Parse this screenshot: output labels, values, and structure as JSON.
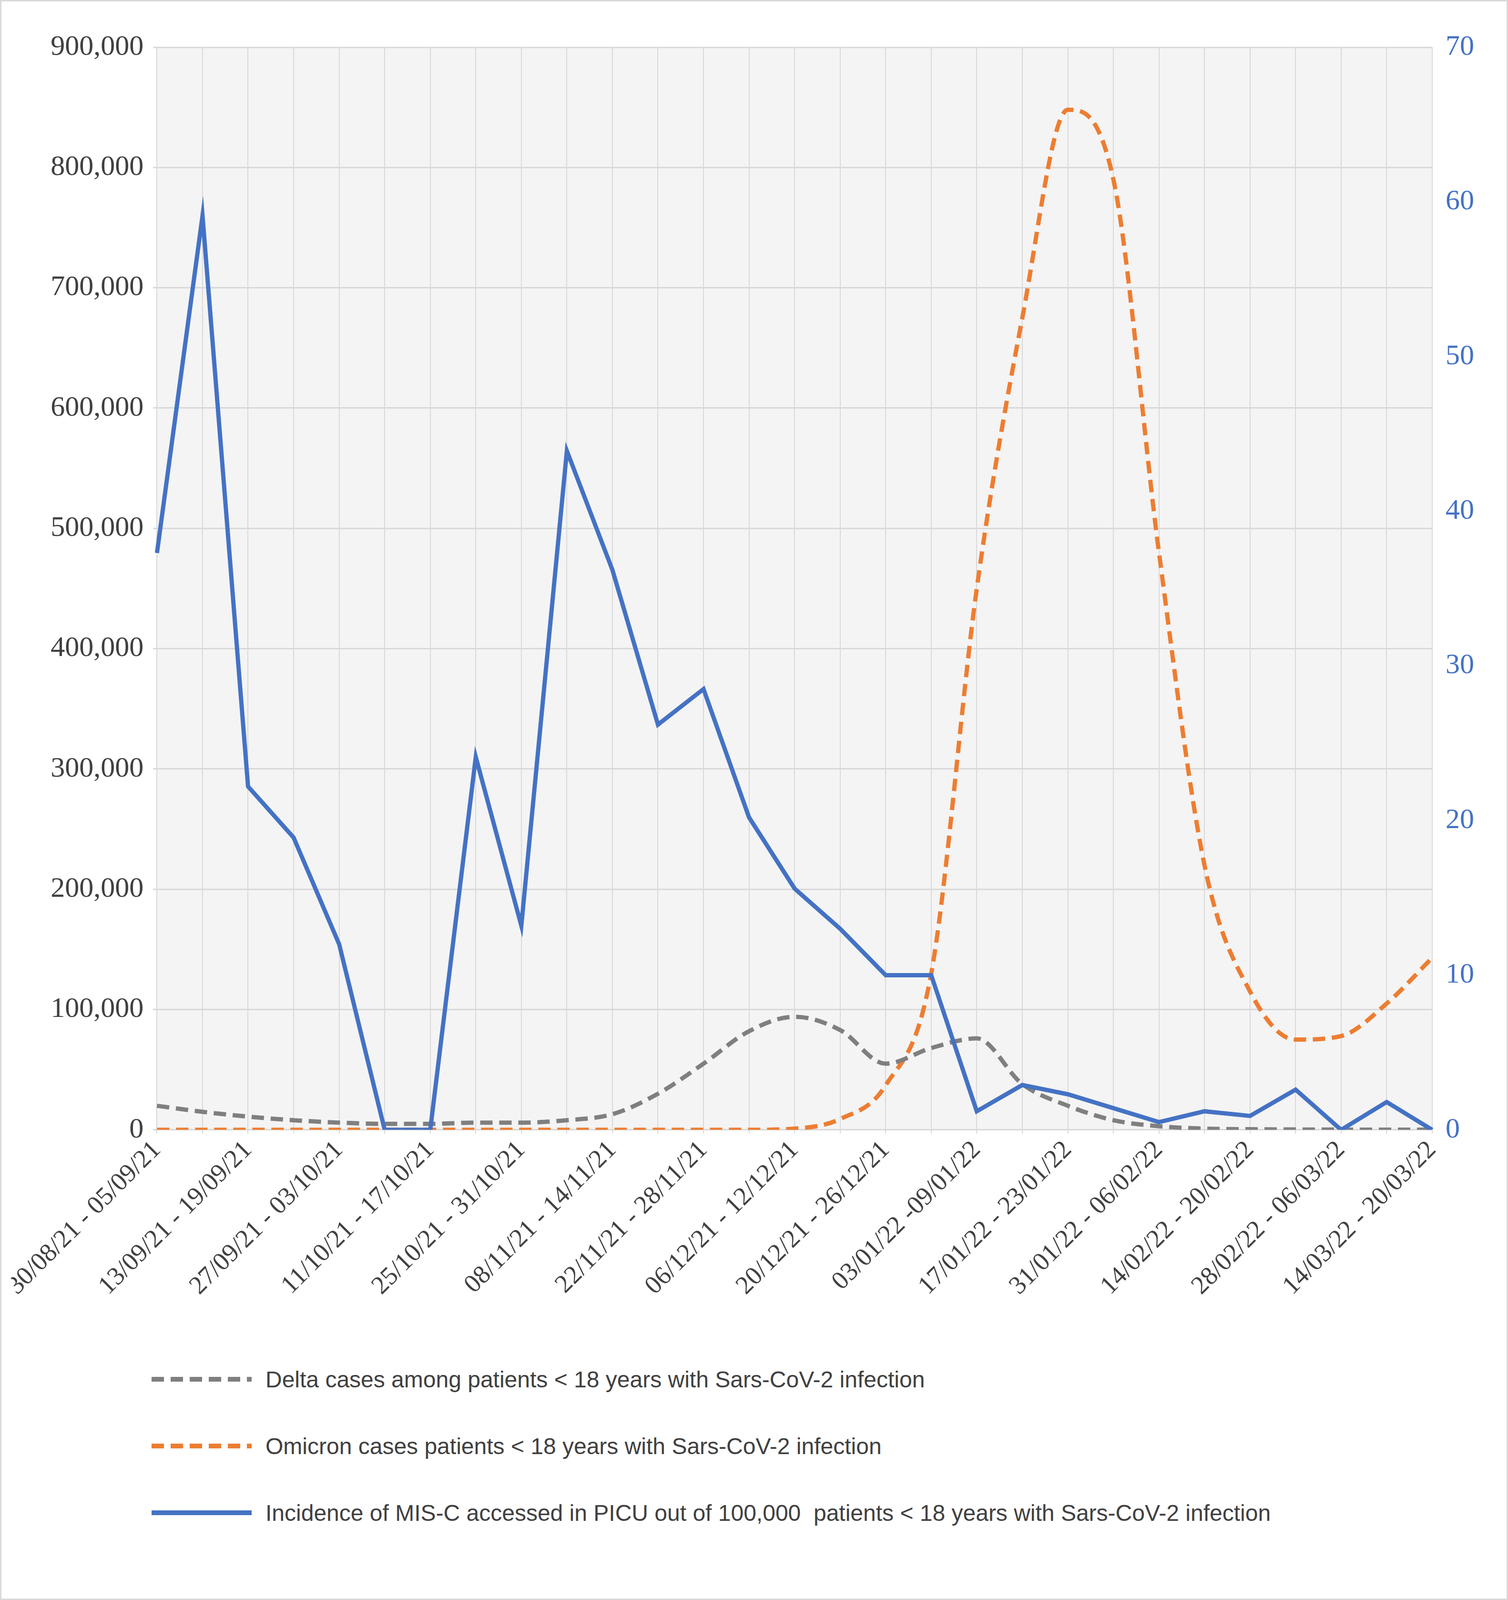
{
  "chart_data": {
    "type": "line",
    "categories": [
      "30/08/21 - 05/09/21",
      null,
      "13/09/21 - 19/09/21",
      null,
      "27/09/21 - 03/10/21",
      null,
      "11/10/21 - 17/10/21",
      null,
      "25/10/21 - 31/10/21",
      null,
      "08/11/21 - 14/11/21",
      null,
      "22/11/21 - 28/11/21",
      null,
      "06/12/21 - 12/12/21",
      null,
      "20/12/21 - 26/12/21",
      null,
      "03/01/22 -09/01/22",
      null,
      "17/01/22 - 23/01/22",
      null,
      "31/01/22 - 06/02/22",
      null,
      "14/02/22 - 20/02/22",
      null,
      "28/02/22 - 06/03/22",
      null,
      "14/03/22 - 20/03/22"
    ],
    "series": [
      {
        "name": "Delta cases among patients < 18 years with Sars-CoV-2 infection",
        "color": "#7f7f7f",
        "line_style": "dashed",
        "values": [
          20000,
          15000,
          11000,
          8000,
          6000,
          5000,
          5000,
          6000,
          6000,
          8000,
          13000,
          30000,
          55000,
          82000,
          94000,
          83000,
          55000,
          68000,
          76000,
          38000,
          20000,
          8000,
          3000,
          1000,
          500,
          300,
          200,
          100,
          100
        ]
      },
      {
        "name": "Omicron cases patients < 18 years with Sars-CoV-2 infection",
        "color": "#ed7d31",
        "line_style": "dashed",
        "values": [
          0,
          0,
          0,
          0,
          0,
          0,
          0,
          0,
          0,
          0,
          0,
          0,
          0,
          0,
          1000,
          9000,
          37000,
          130000,
          450000,
          675000,
          848000,
          790000,
          480000,
          220000,
          115000,
          75000,
          78000,
          105000,
          143000
        ]
      },
      {
        "name": "Incidence of MIS-C accessed in PICU out of 100,000  patients < 18 years with Sars-CoV-2 infection",
        "color": "#4472c4",
        "line_style": "solid",
        "axis": "y2",
        "values": [
          37.3,
          59.1,
          22.2,
          18.9,
          12,
          0,
          0,
          24.1,
          13.2,
          43.9,
          36.2,
          26.2,
          28.5,
          20.2,
          15.6,
          13,
          10,
          10,
          1.2,
          2.9,
          2.3,
          1.4,
          0.5,
          1.2,
          0.9,
          2.6,
          0,
          1.8,
          0
        ]
      }
    ],
    "ylim": [
      0,
      900000
    ],
    "yticks": [
      0,
      {
        "value": 100000,
        "label": "100,000"
      },
      {
        "value": 200000,
        "label": "200,000"
      },
      {
        "value": 300000,
        "label": "300,000"
      },
      {
        "value": 400000,
        "label": "400,000"
      },
      {
        "value": 500000,
        "label": "500,000"
      },
      {
        "value": 600000,
        "label": "600,000"
      },
      {
        "value": 700000,
        "label": "700,000"
      },
      {
        "value": 800000,
        "label": "800,000"
      },
      {
        "value": 900000,
        "label": "900,000"
      }
    ],
    "y2lim": [
      0,
      70
    ],
    "y2ticks": [
      0,
      10,
      20,
      30,
      40,
      50,
      60,
      70
    ],
    "grid": true,
    "legend": "bottom"
  }
}
